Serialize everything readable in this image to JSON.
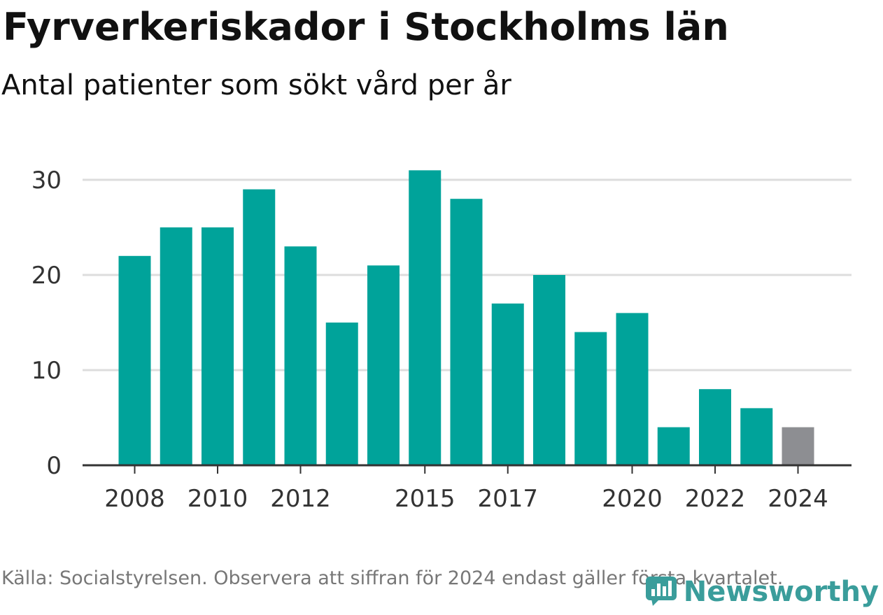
{
  "title": "Fyrverkeriskador i Stockholms län",
  "subtitle": "Antal patienter som sökt vård per år",
  "footer": {
    "note": "Källa: Socialstyrelsen. Observera att siffran för 2024 endast gäller första kvartalet."
  },
  "brand": {
    "name": "Newsworthy",
    "icon": "newsworthy-logo-icon",
    "color": "#3a9d9b"
  },
  "colors": {
    "bar": "#00a39a",
    "bar_partial": "#8d8e92",
    "grid": "#dddddd",
    "axis": "#333333"
  },
  "chart_data": {
    "type": "bar",
    "title": "Fyrverkeriskador i Stockholms län",
    "subtitle": "Antal patienter som sökt vård per år",
    "categories": [
      2008,
      2009,
      2010,
      2011,
      2012,
      2013,
      2014,
      2015,
      2016,
      2017,
      2018,
      2019,
      2020,
      2021,
      2022,
      2023,
      2024
    ],
    "values": [
      22,
      25,
      25,
      29,
      23,
      15,
      21,
      31,
      28,
      17,
      20,
      14,
      16,
      4,
      8,
      6,
      4
    ],
    "partial_categories": [
      2024
    ],
    "x_tick_labels": [
      "2008",
      "2010",
      "2012",
      "2015",
      "2017",
      "2020",
      "2022",
      "2024"
    ],
    "y_ticks": [
      0,
      10,
      20,
      30
    ],
    "ylim": [
      0,
      30
    ],
    "grid": true,
    "legend": "none",
    "xlabel": "",
    "ylabel": ""
  }
}
